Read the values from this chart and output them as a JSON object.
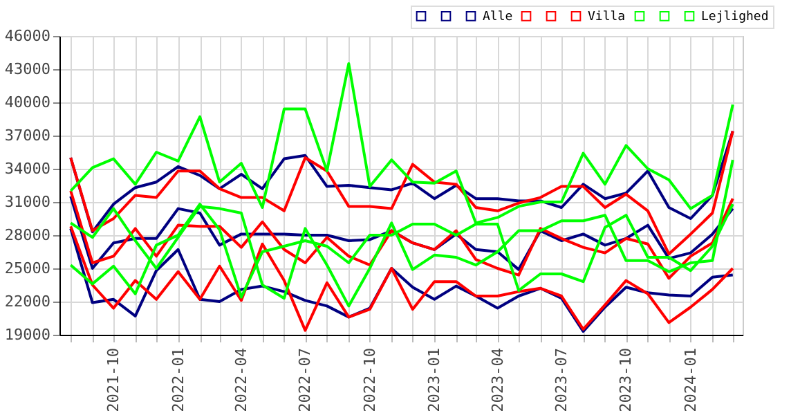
{
  "chart_data": {
    "type": "line",
    "x": [
      "2021-08",
      "2021-09",
      "2021-10",
      "2021-11",
      "2021-12",
      "2022-01",
      "2022-02",
      "2022-03",
      "2022-04",
      "2022-05",
      "2022-06",
      "2022-07",
      "2022-08",
      "2022-09",
      "2022-10",
      "2022-11",
      "2022-12",
      "2023-01",
      "2023-02",
      "2023-03",
      "2023-04",
      "2023-05",
      "2023-06",
      "2023-07",
      "2023-08",
      "2023-09",
      "2023-10",
      "2023-11",
      "2023-12",
      "2024-01",
      "2024-02",
      "2024-03"
    ],
    "xlim": [
      "2021-07-16",
      "2024-03-15"
    ],
    "xticks": [
      "2021-10",
      "2022-01",
      "2022-04",
      "2022-07",
      "2022-10",
      "2023-01",
      "2023-04",
      "2023-07",
      "2023-10",
      "2024-01"
    ],
    "ylim": [
      19000,
      46000
    ],
    "yticks": [
      19000,
      22000,
      25000,
      28000,
      31000,
      34000,
      37000,
      40000,
      43000,
      46000
    ],
    "grid": true,
    "legend": "top right",
    "marker": "none",
    "line_style": "solid",
    "series": [
      {
        "color": "#000080",
        "values": [
          35000,
          28300,
          30800,
          32300,
          32800,
          34200,
          33400,
          32200,
          33500,
          32200,
          34900,
          35200,
          32400,
          32500,
          32300,
          32100,
          32700,
          31300,
          32500,
          31300,
          31300,
          31100,
          31100,
          30500,
          32600,
          31300,
          31800,
          33800,
          30500,
          29500,
          31600,
          37400
        ]
      },
      {
        "color": "#000080",
        "values": [
          31500,
          25000,
          27300,
          27700,
          27700,
          30400,
          30000,
          27100,
          28100,
          28100,
          28100,
          28000,
          28000,
          27500,
          27600,
          28400,
          27300,
          26700,
          28100,
          26700,
          26500,
          24900,
          28400,
          27500,
          28100,
          27100,
          27700,
          28900,
          25900,
          26400,
          28100,
          30400
        ]
      },
      {
        "name": "Alle",
        "color": "#000080",
        "values": [
          28600,
          21900,
          22200,
          20700,
          24800,
          26700,
          22200,
          22000,
          23100,
          23400,
          22900,
          22100,
          21600,
          20600,
          21400,
          25000,
          23300,
          22200,
          23400,
          22500,
          21400,
          22500,
          23200,
          22300,
          19300,
          21500,
          23300,
          22800,
          22600,
          22500,
          24200,
          24400
        ]
      },
      {
        "color": "#ff0000",
        "values": [
          35000,
          28400,
          29500,
          31600,
          31400,
          33800,
          33800,
          32200,
          31400,
          31400,
          30200,
          35000,
          33800,
          30600,
          30600,
          30400,
          34400,
          32800,
          32600,
          30500,
          30200,
          30900,
          31400,
          32400,
          32400,
          30500,
          31700,
          30200,
          26300,
          28100,
          30000,
          37400
        ]
      },
      {
        "color": "#ff0000",
        "values": [
          32000,
          25500,
          26100,
          28600,
          26100,
          28900,
          28800,
          28800,
          26900,
          29200,
          26700,
          25500,
          27800,
          26100,
          25300,
          28400,
          27300,
          26700,
          28400,
          25800,
          25000,
          24400,
          28600,
          27700,
          26900,
          26400,
          27700,
          27200,
          24100,
          26100,
          27300,
          31300
        ]
      },
      {
        "name": "Villa",
        "color": "#ff0000",
        "values": [
          28800,
          23500,
          21400,
          23900,
          22200,
          24700,
          22200,
          25200,
          22100,
          27200,
          23900,
          19400,
          23700,
          20600,
          21300,
          25000,
          21300,
          23800,
          23800,
          22500,
          22500,
          22900,
          23200,
          22500,
          19500,
          21700,
          23900,
          22700,
          20100,
          21500,
          23100,
          25000
        ]
      },
      {
        "color": "#00ff00",
        "values": [
          32000,
          34100,
          34900,
          32600,
          35500,
          34700,
          38700,
          32800,
          34500,
          30500,
          39400,
          39400,
          33800,
          43500,
          32400,
          34800,
          32800,
          32700,
          33800,
          29100,
          29600,
          30600,
          31000,
          31000,
          35400,
          32600,
          36100,
          34000,
          33000,
          30400,
          31600,
          39800
        ]
      },
      {
        "color": "#00ff00",
        "values": [
          29100,
          27800,
          30400,
          27500,
          25000,
          27800,
          30600,
          30400,
          30000,
          23500,
          22300,
          28600,
          25300,
          21600,
          25000,
          29100,
          24900,
          26200,
          26000,
          25300,
          26500,
          28400,
          28400,
          29300,
          29300,
          29800,
          25700,
          25700,
          24700,
          25500,
          25700,
          34800
        ]
      },
      {
        "name": "Lejlighed",
        "color": "#00ff00",
        "values": [
          25300,
          23600,
          25200,
          22700,
          27100,
          28000,
          30800,
          28500,
          22400,
          26500,
          27000,
          27500,
          27000,
          25500,
          28000,
          28000,
          29000,
          29000,
          28000,
          29000,
          29000,
          23000,
          24500,
          24500,
          23800,
          28700,
          29800,
          26000,
          26000,
          24800,
          27000,
          30800
        ]
      }
    ]
  }
}
